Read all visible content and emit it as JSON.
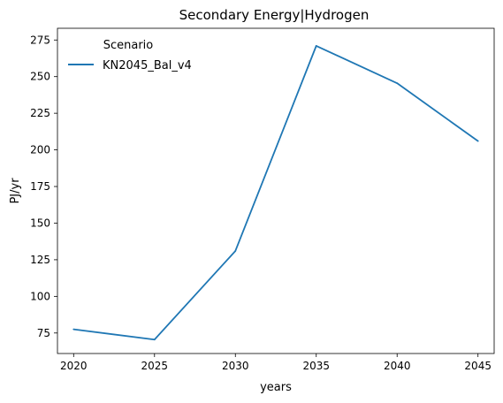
{
  "chart_data": {
    "type": "line",
    "title": "Secondary Energy|Hydrogen",
    "xlabel": "years",
    "ylabel": "PJ/yr",
    "x": [
      2020,
      2025,
      2030,
      2035,
      2040,
      2045
    ],
    "series": [
      {
        "name": "KN2045_Bal_v4",
        "values": [
          77.5,
          70.5,
          131.0,
          271.0,
          245.5,
          206.0
        ],
        "color": "#1f77b4"
      }
    ],
    "xlim": [
      2019,
      2046
    ],
    "ylim": [
      61,
      283
    ],
    "xticks": [
      2020,
      2025,
      2030,
      2035,
      2040,
      2045
    ],
    "yticks": [
      75,
      100,
      125,
      150,
      175,
      200,
      225,
      250,
      275
    ],
    "legend": {
      "title": "Scenario",
      "placement": "upper left"
    },
    "grid": false
  }
}
